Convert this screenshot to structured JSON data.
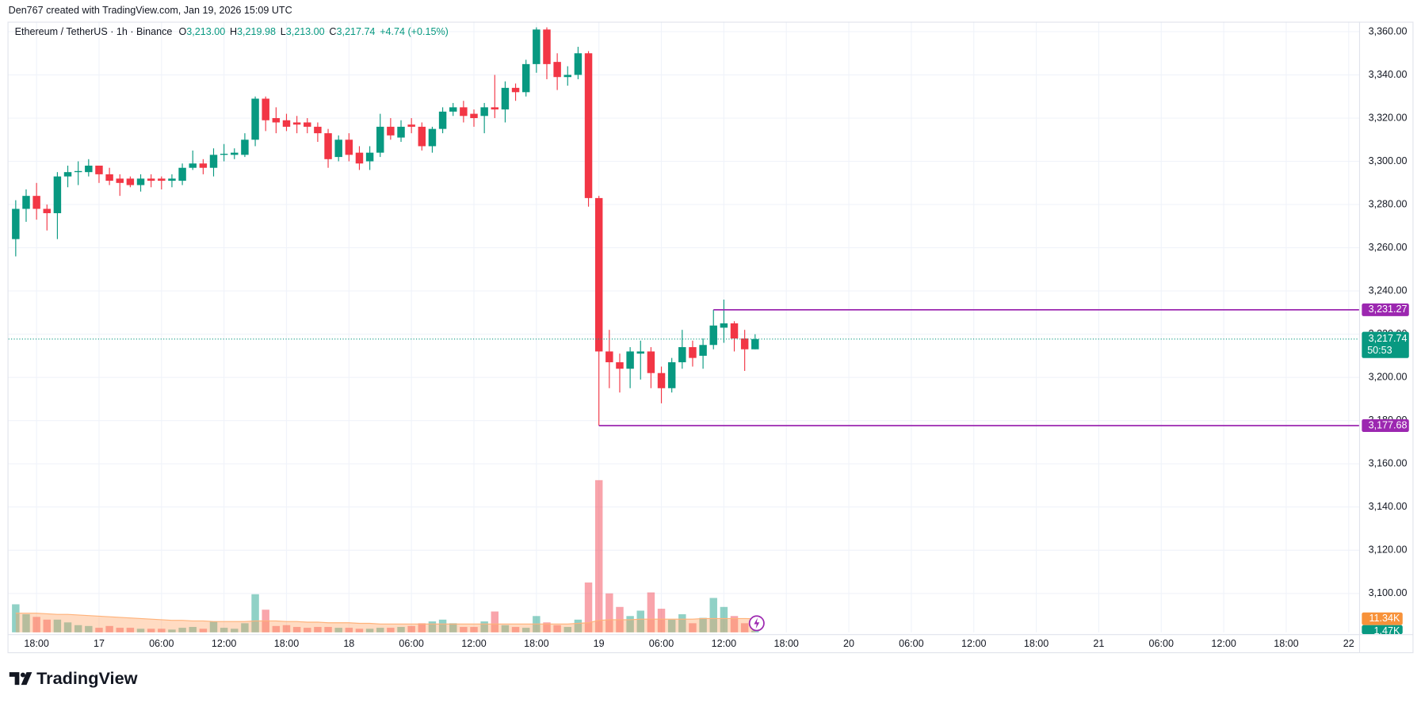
{
  "chart_data": {
    "type": "candlestick",
    "attribution": "Den767 created with TradingView.com, Jan 19, 2026 15:09 UTC",
    "title": "Ethereum / TetherUS · 1h · Binance",
    "ohlc_legend": [
      {
        "label": "O",
        "value": "3,213.00"
      },
      {
        "label": "H",
        "value": "3,219.98"
      },
      {
        "label": "L",
        "value": "3,213.00"
      },
      {
        "label": "C",
        "value": "3,217.74"
      }
    ],
    "change": "+4.74 (+0.15%)",
    "brand": "TradingView",
    "up_color": "#089981",
    "down_color": "#f23645",
    "grid": true,
    "x": [
      0,
      1,
      2,
      3,
      4,
      5,
      6,
      7,
      8,
      9,
      10,
      11,
      12,
      13,
      14,
      15,
      16,
      17,
      18,
      19,
      20,
      21,
      22,
      23,
      24,
      25,
      26,
      27,
      28,
      29,
      30,
      31,
      32,
      33,
      34,
      35,
      36,
      37,
      38,
      39,
      40,
      41,
      42,
      43,
      44,
      45,
      46,
      47,
      48,
      49,
      50,
      51,
      52,
      53,
      54,
      55,
      56,
      57,
      58,
      59,
      60,
      61,
      62,
      63,
      64,
      65,
      66,
      67,
      68,
      69,
      70,
      71
    ],
    "open": [
      3264,
      3278,
      3284,
      3278,
      3276,
      3293,
      3295,
      3295,
      3298,
      3294,
      3292,
      3292,
      3289,
      3292,
      3292,
      3291,
      3291,
      3297,
      3299,
      3297,
      3303,
      3303,
      3303,
      3310,
      3329,
      3320,
      3319,
      3318,
      3318,
      3316,
      3313,
      3302,
      3310,
      3304,
      3300,
      3304,
      3316,
      3311,
      3317,
      3316,
      3307,
      3315,
      3323,
      3325,
      3322,
      3321,
      3325,
      3324,
      3334,
      3332,
      3345,
      3361,
      3346,
      3339,
      3340,
      3350,
      3283,
      3212,
      3207,
      3204,
      3211,
      3212,
      3202,
      3195,
      3207,
      3214,
      3210,
      3215,
      3223,
      3225,
      3218,
      3213
    ],
    "high": [
      3282,
      3287,
      3290,
      3280,
      3295,
      3298,
      3300,
      3301,
      3298,
      3297,
      3294,
      3293,
      3294,
      3294,
      3293,
      3294,
      3299,
      3305,
      3301,
      3306,
      3308,
      3306,
      3313,
      3330,
      3330,
      3325,
      3322,
      3321,
      3320,
      3318,
      3315,
      3312,
      3313,
      3307,
      3307,
      3322,
      3320,
      3319,
      3320,
      3318,
      3316,
      3325,
      3327,
      3328,
      3324,
      3327,
      3340,
      3337,
      3336,
      3347,
      3362,
      3362,
      3350,
      3344,
      3353,
      3351,
      3284,
      3222,
      3211,
      3214,
      3217,
      3214,
      3205,
      3209,
      3222,
      3217,
      3218,
      3231.27,
      3236,
      3226,
      3222,
      3219.98
    ],
    "low": [
      3256,
      3272,
      3273,
      3268,
      3264,
      3288,
      3289,
      3293,
      3290,
      3289,
      3284,
      3288,
      3286,
      3288,
      3287,
      3288,
      3289,
      3296,
      3294,
      3293,
      3300,
      3301,
      3302,
      3307,
      3314,
      3313,
      3314,
      3313,
      3313,
      3309,
      3297,
      3300,
      3300,
      3296,
      3296,
      3302,
      3310,
      3309,
      3313,
      3305,
      3304,
      3313,
      3321,
      3318,
      3316,
      3313,
      3320,
      3318,
      3328,
      3330,
      3341,
      3338,
      3333,
      3335,
      3338,
      3279,
      3177.68,
      3195,
      3193,
      3195,
      3199,
      3195,
      3188,
      3193,
      3204,
      3205,
      3204,
      3213,
      3216,
      3212,
      3203,
      3213
    ],
    "close": [
      3278,
      3284,
      3278,
      3276,
      3293,
      3295,
      3295.5,
      3298,
      3294,
      3291,
      3290,
      3289,
      3292,
      3291,
      3291,
      3292,
      3297,
      3299,
      3297,
      3303,
      3303.5,
      3304,
      3310,
      3329,
      3319,
      3318,
      3316,
      3317,
      3316,
      3313,
      3301,
      3310,
      3303,
      3299,
      3304,
      3316,
      3312,
      3316,
      3316,
      3307,
      3315,
      3323,
      3325,
      3321,
      3320,
      3325,
      3324,
      3334,
      3332,
      3345,
      3361,
      3345,
      3339,
      3340,
      3350,
      3283,
      3212,
      3207,
      3204,
      3212,
      3212,
      3202,
      3195,
      3207,
      3214,
      3209,
      3215,
      3224,
      3225,
      3218,
      3213,
      3217.74
    ],
    "volume": {
      "name": "Volume",
      "values": [
        23.4,
        15.1,
        12.9,
        10.6,
        10.6,
        8.3,
        6.0,
        5.3,
        3.8,
        5.3,
        3.8,
        3.8,
        3.0,
        3.0,
        3.0,
        2.3,
        3.8,
        4.5,
        3.0,
        9.1,
        3.8,
        3.0,
        7.6,
        31.8,
        18.9,
        5.3,
        6.0,
        4.5,
        3.8,
        4.5,
        4.5,
        3.8,
        3.8,
        3.0,
        3.0,
        3.8,
        3.8,
        4.5,
        5.3,
        7.6,
        9.1,
        10.6,
        7.6,
        4.5,
        4.5,
        9.1,
        17.4,
        6.0,
        4.5,
        3.8,
        13.6,
        8.3,
        6.0,
        4.5,
        10.6,
        41.6,
        127.0,
        32.5,
        21.2,
        13.6,
        18.1,
        33.3,
        19.7,
        10.6,
        15.1,
        7.6,
        12.1,
        28.7,
        21.2,
        13.6,
        7.6,
        1.47
      ],
      "last_label": "1.47K",
      "up_color": "rgba(8,153,129,0.45)",
      "down_color": "rgba(242,54,69,0.45)",
      "ylim": [
        0,
        151.2
      ]
    },
    "volume_ma": {
      "values": [
        16,
        16,
        16,
        15.5,
        15,
        15,
        14.5,
        14,
        13.5,
        13,
        12.5,
        12,
        11.5,
        11,
        10.5,
        10,
        10,
        9.5,
        9.5,
        9,
        9,
        9,
        9,
        9.5,
        9.5,
        9.5,
        9,
        9,
        8.5,
        8.5,
        8,
        8,
        8,
        7.5,
        7.5,
        7,
        7,
        7,
        7,
        7,
        7,
        7,
        7,
        7,
        7,
        7,
        7,
        7,
        7,
        7,
        7,
        7,
        7,
        7,
        7.5,
        8,
        10,
        10.5,
        10.5,
        10.5,
        11,
        11,
        11,
        11,
        11,
        11,
        11.5,
        11.5,
        11.5,
        11.5,
        11.5,
        11.34
      ],
      "last_label": "11.34K",
      "color": "rgba(255,152,80,0.35)",
      "line_color": "#ffb27a",
      "label_color": "#f7923a"
    },
    "last_price": {
      "value": 3217.74,
      "label": "3,217.74"
    },
    "countdown": "50:53",
    "levels": [
      {
        "value": 3231.27,
        "label": "3,231.27",
        "x_start": 67,
        "color": "#9c27b0"
      },
      {
        "value": 3177.68,
        "label": "3,177.68",
        "x_start": 56,
        "color": "#9c27b0"
      }
    ],
    "xlim": [
      -0.7,
      129
    ],
    "xticks": [
      {
        "value": 2,
        "label": "18:00"
      },
      {
        "value": 8,
        "label": "17"
      },
      {
        "value": 14,
        "label": "06:00"
      },
      {
        "value": 20,
        "label": "12:00"
      },
      {
        "value": 26,
        "label": "18:00"
      },
      {
        "value": 32,
        "label": "18"
      },
      {
        "value": 38,
        "label": "06:00"
      },
      {
        "value": 44,
        "label": "12:00"
      },
      {
        "value": 50,
        "label": "18:00"
      },
      {
        "value": 56,
        "label": "19"
      },
      {
        "value": 62,
        "label": "06:00"
      },
      {
        "value": 68,
        "label": "12:00"
      },
      {
        "value": 74,
        "label": "18:00"
      },
      {
        "value": 80,
        "label": "20"
      },
      {
        "value": 86,
        "label": "06:00"
      },
      {
        "value": 92,
        "label": "12:00"
      },
      {
        "value": 98,
        "label": "18:00"
      },
      {
        "value": 104,
        "label": "21"
      },
      {
        "value": 110,
        "label": "06:00"
      },
      {
        "value": 116,
        "label": "12:00"
      },
      {
        "value": 122,
        "label": "18:00"
      },
      {
        "value": 128,
        "label": "22"
      }
    ],
    "ylim": [
      3082,
      3364.6
    ],
    "yticks": [
      {
        "value": 3100,
        "label": "3,100.00"
      },
      {
        "value": 3120,
        "label": "3,120.00"
      },
      {
        "value": 3140,
        "label": "3,140.00"
      },
      {
        "value": 3160,
        "label": "3,160.00"
      },
      {
        "value": 3180,
        "label": "3,180.00"
      },
      {
        "value": 3200,
        "label": "3,200.00"
      },
      {
        "value": 3220,
        "label": "3,220.00"
      },
      {
        "value": 3240,
        "label": "3,240.00"
      },
      {
        "value": 3260,
        "label": "3,260.00"
      },
      {
        "value": 3280,
        "label": "3,280.00"
      },
      {
        "value": 3300,
        "label": "3,300.00"
      },
      {
        "value": 3320,
        "label": "3,320.00"
      },
      {
        "value": 3340,
        "label": "3,340.00"
      },
      {
        "value": 3360,
        "label": "3,360.00"
      }
    ]
  }
}
